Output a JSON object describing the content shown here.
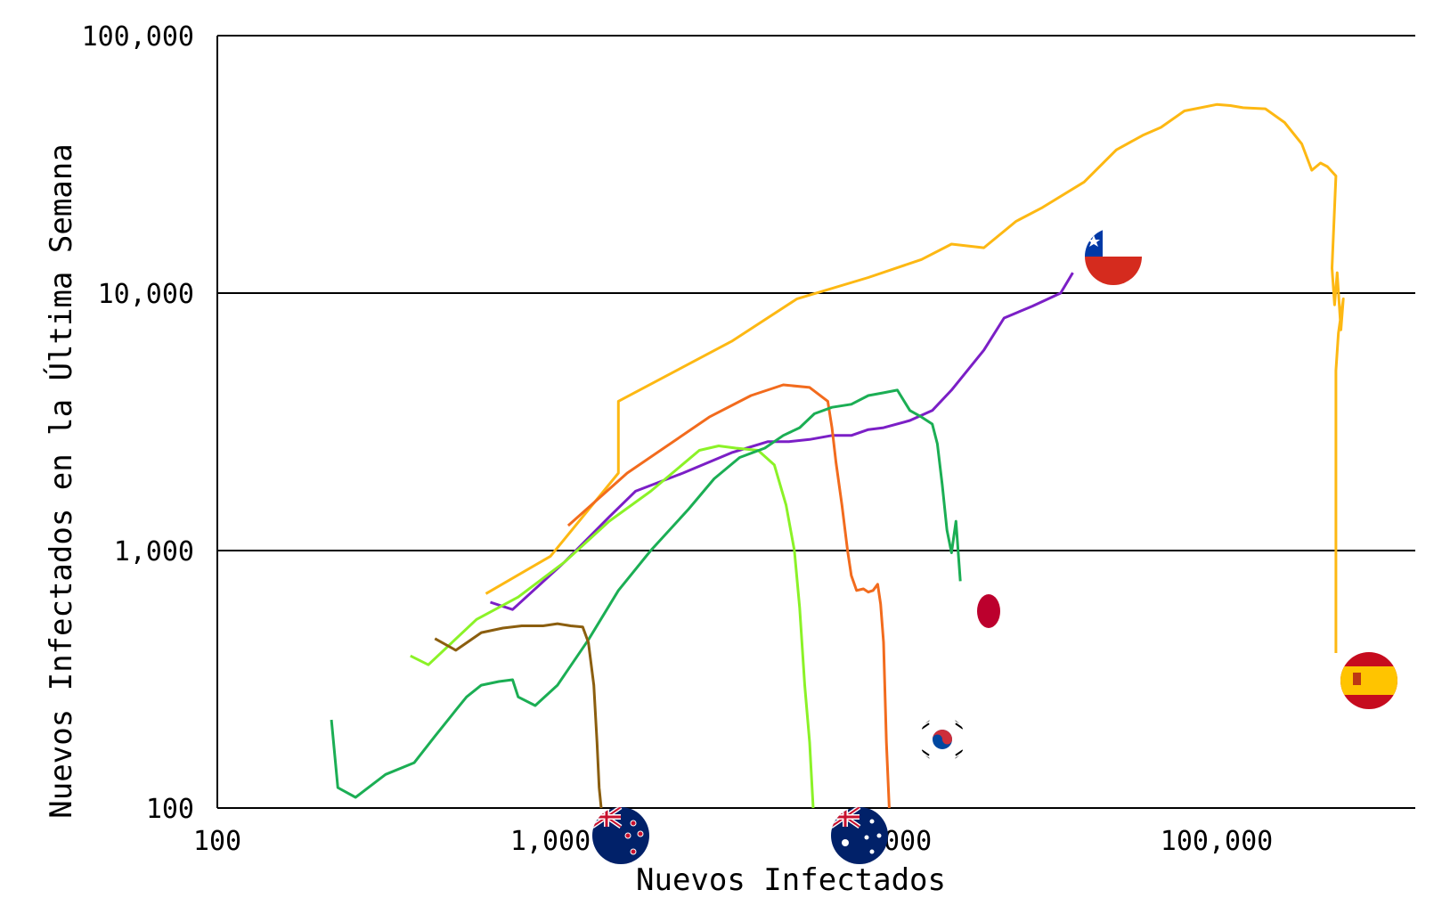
{
  "chart_data": {
    "type": "line",
    "xscale": "log",
    "yscale": "log",
    "xlabel": "Nuevos Infectados",
    "ylabel": "Nuevos Infectados en la Última Semana",
    "xlim": [
      100,
      300000
    ],
    "ylim": [
      100,
      100000
    ],
    "x_ticks": [
      {
        "value": 100,
        "label": "100"
      },
      {
        "value": 1000,
        "label": "1,000"
      },
      {
        "value": 10000,
        "label": "10,000"
      },
      {
        "value": 100000,
        "label": "100,000"
      }
    ],
    "y_ticks": [
      {
        "value": 100,
        "label": "100"
      },
      {
        "value": 1000,
        "label": "1,000"
      },
      {
        "value": 10000,
        "label": "10,000"
      },
      {
        "value": 100000,
        "label": "100,000"
      }
    ],
    "grid": {
      "horizontal": true,
      "vertical": false
    },
    "series": [
      {
        "color": "#FDB813",
        "flag": "spain-flag",
        "points": [
          [
            640,
            680
          ],
          [
            1000,
            950
          ],
          [
            1600,
            2000
          ],
          [
            1600,
            3800
          ],
          [
            3500,
            6500
          ],
          [
            5500,
            9500
          ],
          [
            9000,
            11500
          ],
          [
            13000,
            13500
          ],
          [
            16000,
            15500
          ],
          [
            20000,
            15000
          ],
          [
            25000,
            19000
          ],
          [
            30000,
            21500
          ],
          [
            40000,
            27000
          ],
          [
            50000,
            36000
          ],
          [
            60000,
            41000
          ],
          [
            68000,
            44000
          ],
          [
            80000,
            51000
          ],
          [
            100000,
            54000
          ],
          [
            110000,
            53500
          ],
          [
            120000,
            52500
          ],
          [
            140000,
            52000
          ],
          [
            160000,
            46000
          ],
          [
            180000,
            38000
          ],
          [
            193000,
            30000
          ],
          [
            205000,
            32000
          ],
          [
            215000,
            31000
          ],
          [
            228000,
            28500
          ],
          [
            222000,
            12500
          ],
          [
            226000,
            9000
          ],
          [
            230000,
            12000
          ],
          [
            236000,
            7200
          ],
          [
            240000,
            9500
          ],
          [
            232000,
            7000
          ],
          [
            228000,
            5000
          ],
          [
            228000,
            3000
          ],
          [
            228000,
            400
          ]
        ]
      },
      {
        "color": "#7B1FC6",
        "flag": "chile-flag",
        "points": [
          [
            660,
            630
          ],
          [
            770,
            590
          ],
          [
            1100,
            900
          ],
          [
            1500,
            1350
          ],
          [
            1800,
            1700
          ],
          [
            2500,
            2000
          ],
          [
            3500,
            2400
          ],
          [
            4500,
            2650
          ],
          [
            5200,
            2650
          ],
          [
            6000,
            2700
          ],
          [
            7000,
            2800
          ],
          [
            8000,
            2800
          ],
          [
            9000,
            2950
          ],
          [
            10000,
            3000
          ],
          [
            12000,
            3200
          ],
          [
            14000,
            3500
          ],
          [
            16000,
            4200
          ],
          [
            20000,
            6000
          ],
          [
            23000,
            8000
          ],
          [
            28000,
            8900
          ],
          [
            34000,
            10000
          ],
          [
            37000,
            12000
          ]
        ]
      },
      {
        "color": "#F26B1D",
        "flag": "korea-flag",
        "points": [
          [
            1130,
            1250
          ],
          [
            1700,
            2000
          ],
          [
            3000,
            3300
          ],
          [
            4000,
            4000
          ],
          [
            5000,
            4400
          ],
          [
            6000,
            4300
          ],
          [
            6800,
            3800
          ],
          [
            7000,
            3000
          ],
          [
            7200,
            2200
          ],
          [
            7500,
            1500
          ],
          [
            7800,
            1000
          ],
          [
            8000,
            800
          ],
          [
            8300,
            700
          ],
          [
            8700,
            710
          ],
          [
            9000,
            690
          ],
          [
            9300,
            700
          ],
          [
            9600,
            740
          ],
          [
            9800,
            620
          ],
          [
            10000,
            440
          ],
          [
            10200,
            180
          ],
          [
            10400,
            100
          ]
        ]
      },
      {
        "color": "#8BF227",
        "flag": "australia-flag",
        "points": [
          [
            380,
            390
          ],
          [
            430,
            360
          ],
          [
            600,
            540
          ],
          [
            800,
            660
          ],
          [
            1100,
            900
          ],
          [
            1500,
            1300
          ],
          [
            2000,
            1700
          ],
          [
            2800,
            2450
          ],
          [
            3200,
            2550
          ],
          [
            3600,
            2500
          ],
          [
            4200,
            2450
          ],
          [
            4700,
            2150
          ],
          [
            5100,
            1500
          ],
          [
            5400,
            1000
          ],
          [
            5600,
            600
          ],
          [
            5800,
            300
          ],
          [
            6000,
            180
          ],
          [
            6150,
            100
          ]
        ]
      },
      {
        "color": "#1BAE54",
        "flag": "japan-flag",
        "points": [
          [
            220,
            220
          ],
          [
            230,
            120
          ],
          [
            260,
            110
          ],
          [
            320,
            135
          ],
          [
            390,
            150
          ],
          [
            450,
            190
          ],
          [
            520,
            240
          ],
          [
            560,
            270
          ],
          [
            620,
            300
          ],
          [
            700,
            310
          ],
          [
            770,
            315
          ],
          [
            800,
            270
          ],
          [
            900,
            250
          ],
          [
            1050,
            300
          ],
          [
            1300,
            450
          ],
          [
            1600,
            700
          ],
          [
            2000,
            1000
          ],
          [
            2600,
            1450
          ],
          [
            3100,
            1900
          ],
          [
            3700,
            2300
          ],
          [
            4400,
            2500
          ],
          [
            5000,
            2800
          ],
          [
            5600,
            3000
          ],
          [
            6200,
            3400
          ],
          [
            7000,
            3600
          ],
          [
            8000,
            3700
          ],
          [
            9000,
            4000
          ],
          [
            10000,
            4100
          ],
          [
            11000,
            4200
          ],
          [
            12000,
            3500
          ],
          [
            13000,
            3300
          ],
          [
            14000,
            3100
          ],
          [
            14500,
            2600
          ],
          [
            15000,
            1800
          ],
          [
            15500,
            1200
          ],
          [
            16000,
            980
          ],
          [
            16500,
            1300
          ],
          [
            17000,
            760
          ]
        ]
      },
      {
        "color": "#8B5E0F",
        "flag": "new-zealand-flag",
        "points": [
          [
            450,
            455
          ],
          [
            520,
            410
          ],
          [
            620,
            480
          ],
          [
            720,
            500
          ],
          [
            820,
            510
          ],
          [
            950,
            510
          ],
          [
            1050,
            520
          ],
          [
            1150,
            510
          ],
          [
            1250,
            505
          ],
          [
            1300,
            440
          ],
          [
            1350,
            300
          ],
          [
            1380,
            180
          ],
          [
            1400,
            120
          ],
          [
            1420,
            100
          ]
        ]
      }
    ]
  }
}
